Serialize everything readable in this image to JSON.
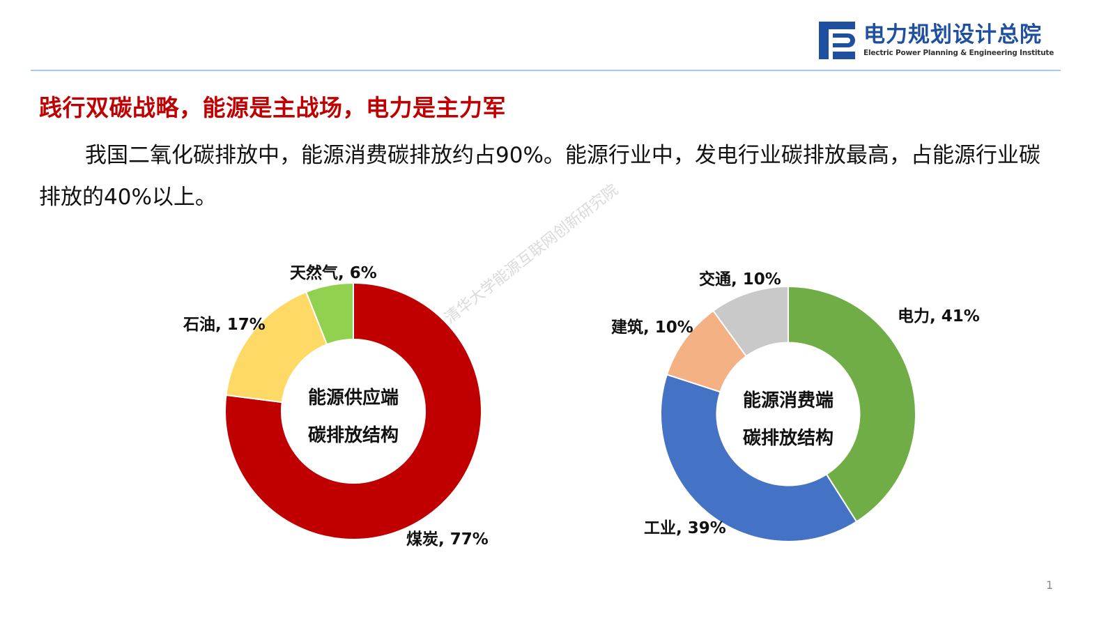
{
  "header": {
    "logo_cn": "电力规划设计总院",
    "logo_en": "Electric Power Planning & Engineering Institute",
    "logo_color": "#1f4f9f",
    "rule_color": "#a9c8ea"
  },
  "slide": {
    "title": "践行双碳战略，能源是主战场，电力是主力军",
    "title_color": "#c00000",
    "body": "我国二氧化碳排放中，能源消费碳排放约占90%。能源行业中，发电行业碳排放最高，占能源行业碳排放的40%以上。",
    "watermark": "清华大学能源互联网创新研究院",
    "page_number": "1"
  },
  "chart_data": [
    {
      "type": "pie",
      "subtype": "donut",
      "title": "能源供应端碳排放结构",
      "center_lines": [
        "能源供应端",
        "碳排放结构"
      ],
      "categories": [
        "煤炭",
        "石油",
        "天然气"
      ],
      "values": [
        77,
        17,
        6
      ],
      "unit": "%",
      "colors": [
        "#c00000",
        "#ffd966",
        "#92d050"
      ],
      "labels": [
        "煤炭, 77%",
        "石油, 17%",
        "天然气, 6%"
      ],
      "legend": "none"
    },
    {
      "type": "pie",
      "subtype": "donut",
      "title": "能源消费端碳排放结构",
      "center_lines": [
        "能源消费端",
        "碳排放结构"
      ],
      "categories": [
        "电力",
        "工业",
        "建筑",
        "交通"
      ],
      "values": [
        41,
        39,
        10,
        10
      ],
      "unit": "%",
      "colors": [
        "#70ad47",
        "#4472c4",
        "#f4b183",
        "#c9c9c9"
      ],
      "labels": [
        "电力, 41%",
        "工业, 39%",
        "建筑, 10%",
        "交通, 10%"
      ],
      "legend": "none"
    }
  ]
}
